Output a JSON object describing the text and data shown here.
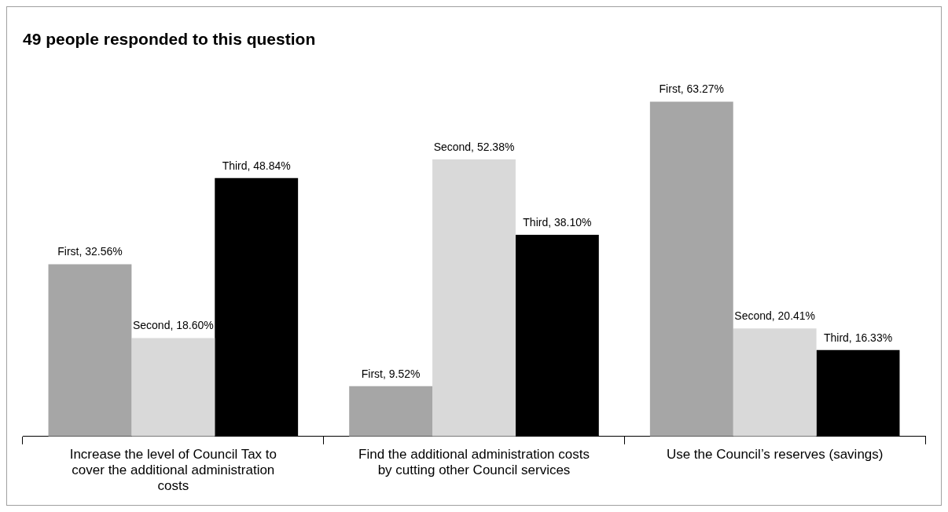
{
  "chart_data": {
    "type": "bar",
    "title": "49 people responded to this question",
    "categories": [
      "Increase the level of Council Tax to cover the additional administration costs",
      "Find the additional administration costs by cutting other Council services",
      "Use the Council’s reserves (savings)"
    ],
    "series": [
      {
        "color": "#a6a6a6",
        "values": [
          32.56,
          9.52,
          63.27
        ],
        "value_labels": [
          "First, 32.56%",
          "First, 9.52%",
          "First, 63.27%"
        ]
      },
      {
        "color": "#d9d9d9",
        "values": [
          18.6,
          52.38,
          20.41
        ],
        "value_labels": [
          "Second, 18.60%",
          "Second, 52.38%",
          "Second, 20.41%"
        ]
      },
      {
        "color": "#000000",
        "values": [
          48.84,
          38.1,
          16.33
        ],
        "value_labels": [
          "Third, 48.84%",
          "Third, 38.10%",
          "Third, 16.33%"
        ]
      }
    ],
    "grid": false,
    "legend": false
  }
}
